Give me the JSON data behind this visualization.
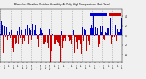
{
  "title": "Milwaukee Weather Outdoor Humidity At Daily High Temperature (Past Year)",
  "n_days": 365,
  "ylim": [
    -55,
    55
  ],
  "ytick_vals": [
    -40,
    -20,
    0,
    20,
    40
  ],
  "ytick_labels": [
    "-4",
    "-2",
    "0",
    "2",
    "4"
  ],
  "background_color": "#f0f0f0",
  "bar_color_pos": "#0000cc",
  "bar_color_neg": "#cc0000",
  "dot_color": "#cc0000",
  "dot_color2": "#0000cc",
  "grid_color": "#999999",
  "n_grid_lines": 13,
  "seed": 99
}
